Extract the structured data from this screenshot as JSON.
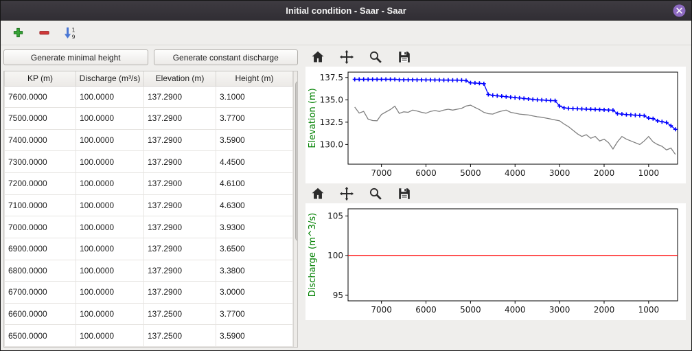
{
  "window": {
    "title": "Initial condition - Saar - Saar"
  },
  "titlebar_icons": [
    {
      "name": "close-icon"
    }
  ],
  "main_toolbar": {
    "icons": [
      {
        "name": "add-row",
        "glyph": "green-plus"
      },
      {
        "name": "remove-row",
        "glyph": "red-minus"
      },
      {
        "name": "sort-rows",
        "glyph": "blue-arrow-1-9"
      }
    ]
  },
  "left": {
    "buttons": [
      "Generate minimal height",
      "Generate constant discharge"
    ],
    "table": {
      "columns": [
        "KP (m)",
        "Discharge (m³/s)",
        "Elevation (m)",
        "Height (m)"
      ],
      "rows": [
        [
          "7600.0000",
          "100.0000",
          "137.2900",
          "3.1000"
        ],
        [
          "7500.0000",
          "100.0000",
          "137.2900",
          "3.7700"
        ],
        [
          "7400.0000",
          "100.0000",
          "137.2900",
          "3.5900"
        ],
        [
          "7300.0000",
          "100.0000",
          "137.2900",
          "4.4500"
        ],
        [
          "7200.0000",
          "100.0000",
          "137.2900",
          "4.6100"
        ],
        [
          "7100.0000",
          "100.0000",
          "137.2900",
          "4.6300"
        ],
        [
          "7000.0000",
          "100.0000",
          "137.2900",
          "3.9300"
        ],
        [
          "6900.0000",
          "100.0000",
          "137.2900",
          "3.6500"
        ],
        [
          "6800.0000",
          "100.0000",
          "137.2900",
          "3.3800"
        ],
        [
          "6700.0000",
          "100.0000",
          "137.2900",
          "3.0000"
        ],
        [
          "6600.0000",
          "100.0000",
          "137.2500",
          "3.7700"
        ],
        [
          "6500.0000",
          "100.0000",
          "137.2500",
          "3.5900"
        ]
      ]
    }
  },
  "chart_toolbar_icons": [
    "home",
    "pan",
    "zoom",
    "save"
  ],
  "chart_data": [
    {
      "type": "line",
      "title": "",
      "xlabel": "",
      "ylabel": "Elevation (m)",
      "ylabel_color": "#008000",
      "xlim": [
        7750,
        350
      ],
      "ylim": [
        127.8,
        138.1
      ],
      "x_axis_reversed": true,
      "grid": false,
      "legend": "none",
      "xticks": [
        7000,
        6000,
        5000,
        4000,
        3000,
        2000,
        1000
      ],
      "xticklabels": [
        "7000",
        "6000",
        "5000",
        "4000",
        "3000",
        "2000",
        "1000"
      ],
      "yticks": [
        137.5,
        135.0,
        132.5,
        130.0
      ],
      "yticklabels": [
        "137.5",
        "135.0",
        "132.5",
        "130.0"
      ],
      "x": [
        7600,
        7500,
        7400,
        7300,
        7200,
        7100,
        7000,
        6900,
        6800,
        6700,
        6600,
        6500,
        6400,
        6300,
        6200,
        6100,
        6000,
        5900,
        5800,
        5700,
        5600,
        5500,
        5400,
        5300,
        5200,
        5100,
        5000,
        4900,
        4800,
        4700,
        4600,
        4500,
        4400,
        4300,
        4200,
        4100,
        4000,
        3900,
        3800,
        3700,
        3600,
        3500,
        3400,
        3300,
        3200,
        3100,
        3000,
        2900,
        2800,
        2700,
        2600,
        2500,
        2400,
        2300,
        2200,
        2100,
        2000,
        1900,
        1800,
        1700,
        1600,
        1500,
        1400,
        1300,
        1200,
        1100,
        1000,
        900,
        800,
        700,
        600,
        500,
        400
      ],
      "series": [
        {
          "name": "water-elevation",
          "color": "#0000ff",
          "marker": "plus",
          "values": [
            137.29,
            137.29,
            137.29,
            137.29,
            137.29,
            137.29,
            137.29,
            137.29,
            137.29,
            137.29,
            137.25,
            137.25,
            137.25,
            137.25,
            137.24,
            137.24,
            137.23,
            137.23,
            137.22,
            137.22,
            137.21,
            137.21,
            137.2,
            137.2,
            137.19,
            137.15,
            136.9,
            136.88,
            136.85,
            136.8,
            135.6,
            135.5,
            135.45,
            135.4,
            135.35,
            135.3,
            135.25,
            135.2,
            135.15,
            135.1,
            135.05,
            135.0,
            134.98,
            134.95,
            134.92,
            134.9,
            134.3,
            134.1,
            134.05,
            134.02,
            134.0,
            133.98,
            133.96,
            133.94,
            133.92,
            133.9,
            133.88,
            133.86,
            133.84,
            133.45,
            133.4,
            133.35,
            133.32,
            133.28,
            133.25,
            133.22,
            132.95,
            132.9,
            132.65,
            132.55,
            132.45,
            132.1,
            131.7
          ]
        },
        {
          "name": "bottom-elevation",
          "color": "#7f7f7f",
          "marker": "none",
          "values": [
            134.19,
            133.52,
            133.7,
            132.84,
            132.68,
            132.66,
            133.36,
            133.64,
            133.91,
            134.29,
            133.48,
            133.66,
            133.6,
            133.85,
            133.75,
            133.6,
            133.5,
            133.7,
            133.8,
            133.7,
            133.85,
            133.95,
            133.85,
            133.95,
            134.05,
            134.3,
            134.4,
            134.15,
            133.9,
            133.6,
            133.45,
            133.4,
            133.6,
            133.75,
            133.85,
            133.6,
            133.5,
            133.4,
            133.35,
            133.3,
            133.2,
            133.1,
            133.05,
            132.95,
            132.85,
            132.75,
            132.65,
            132.3,
            132.0,
            131.6,
            131.2,
            130.9,
            131.1,
            130.7,
            130.9,
            130.4,
            130.6,
            130.2,
            129.5,
            130.3,
            130.9,
            130.6,
            130.4,
            130.2,
            130.0,
            130.4,
            130.9,
            130.3,
            130.0,
            129.8,
            129.4,
            129.6,
            128.9
          ]
        }
      ]
    },
    {
      "type": "line",
      "title": "",
      "xlabel": "",
      "ylabel": "Discharge (m^3/s)",
      "ylabel_color": "#008000",
      "xlim": [
        7750,
        350
      ],
      "ylim": [
        94.3,
        105.9
      ],
      "x_axis_reversed": true,
      "grid": false,
      "legend": "none",
      "xticks": [
        7000,
        6000,
        5000,
        4000,
        3000,
        2000,
        1000
      ],
      "xticklabels": [
        "7000",
        "6000",
        "5000",
        "4000",
        "3000",
        "2000",
        "1000"
      ],
      "yticks": [
        105,
        100,
        95
      ],
      "yticklabels": [
        "105",
        "100",
        "95"
      ],
      "x": [
        7750,
        350
      ],
      "series": [
        {
          "name": "discharge",
          "color": "#ff0000",
          "marker": "none",
          "values": [
            100,
            100
          ]
        }
      ]
    }
  ]
}
